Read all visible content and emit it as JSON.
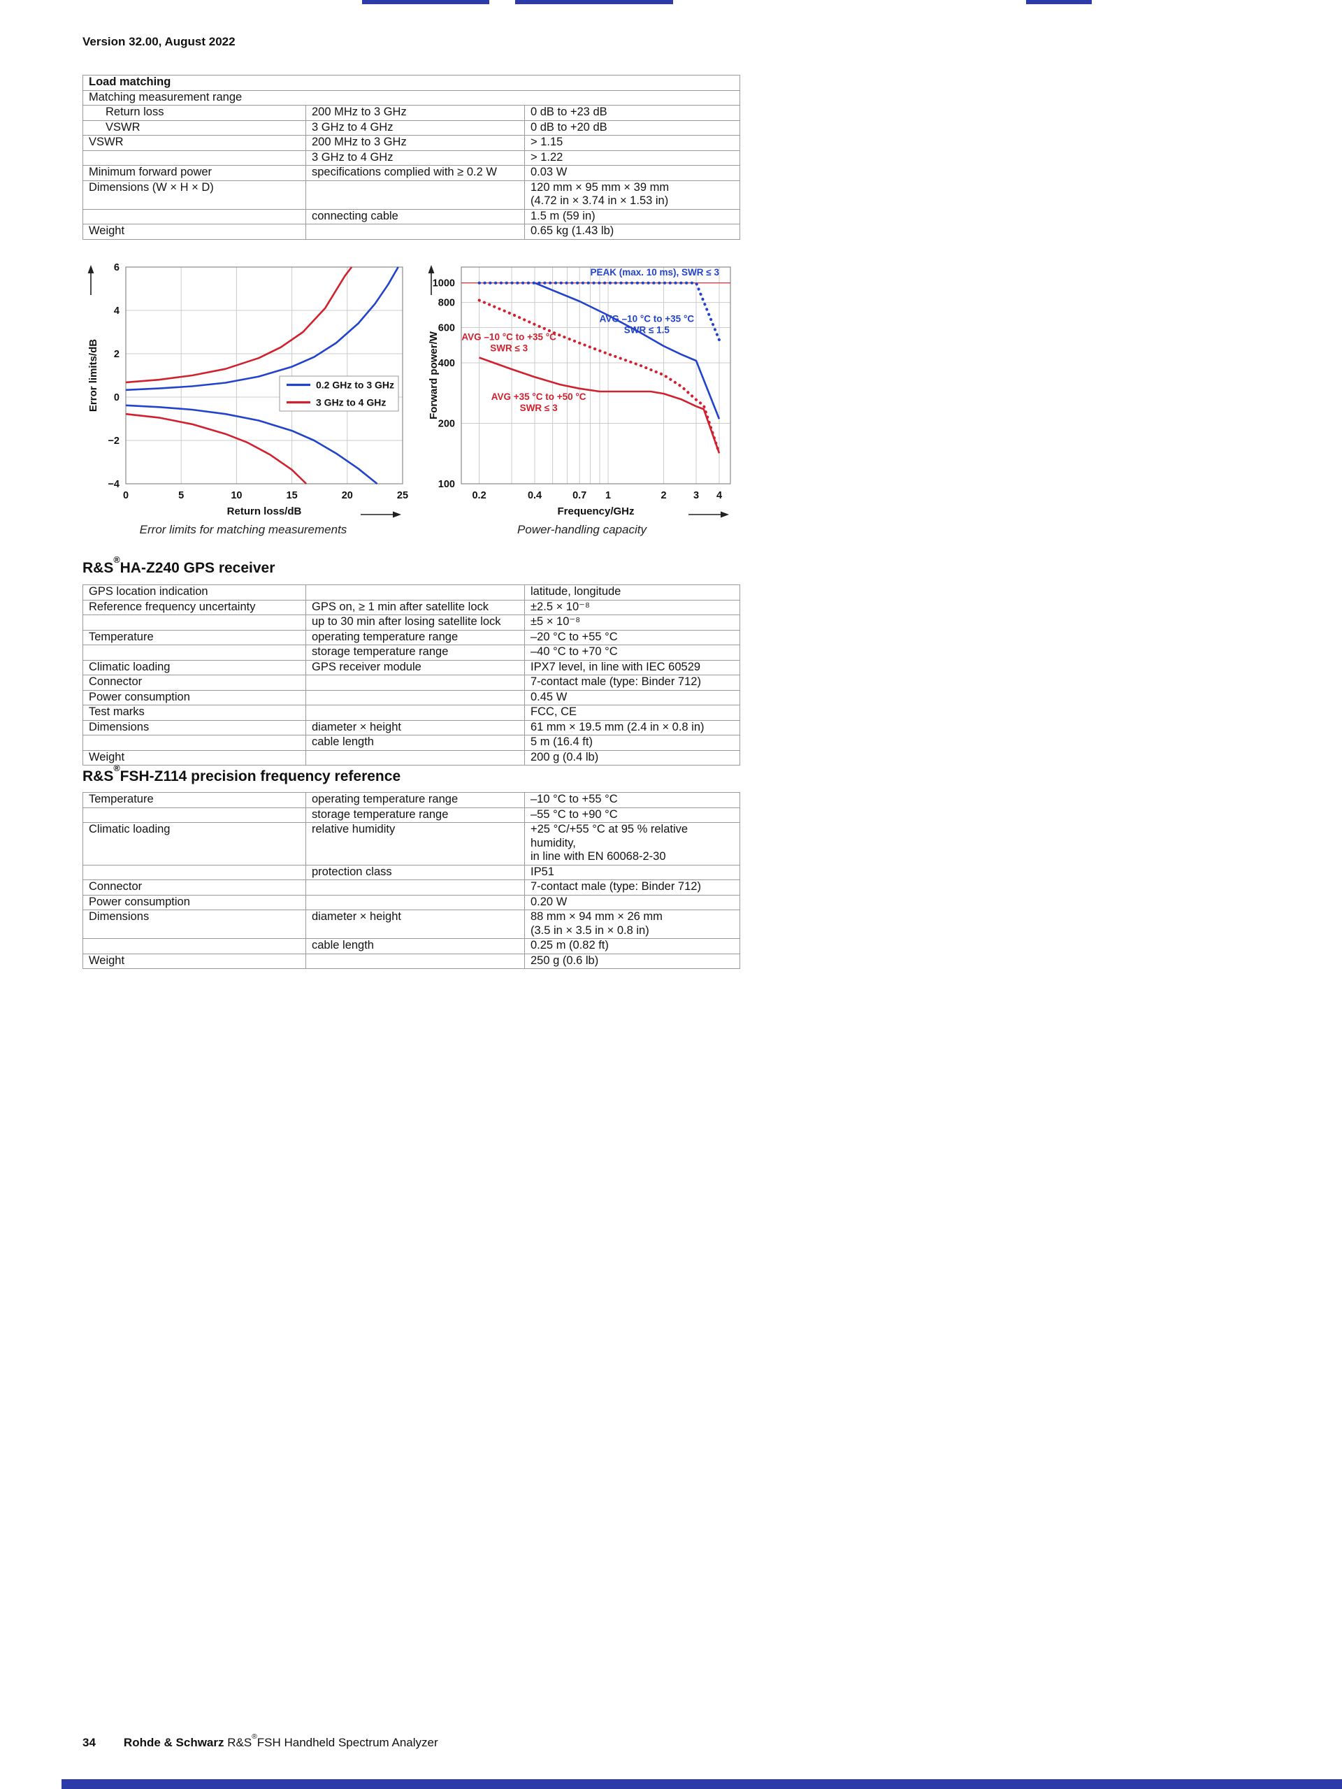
{
  "page": {
    "version_line": "Version 32.00, August 2022"
  },
  "headings": {
    "gps": {
      "prefix": "R&S",
      "reg": "®",
      "rest": "HA-Z240 GPS receiver"
    },
    "z114": {
      "prefix": "R&S",
      "reg": "®",
      "rest": "FSH-Z114 precision frequency reference"
    }
  },
  "footer": {
    "page_number": "34",
    "brand": "Rohde & Schwarz",
    "product_prefix": "R&S",
    "reg": "®",
    "product_rest": "FSH Handheld Spectrum Analyzer"
  },
  "colors": {
    "chart_blue": "#2243cc",
    "chart_red": "#d2212e",
    "bar_blue": "#2c3ba8",
    "grid_gray": "#cbcbcb",
    "frame_gray": "#8a8a8a",
    "table_border": "#9a9a9a"
  },
  "tables": {
    "load_matching": {
      "rows": [
        [
          {
            "t": "Load matching",
            "b": 1,
            "span": 3
          }
        ],
        [
          {
            "t": "Matching measurement range",
            "span": 3
          }
        ],
        [
          {
            "t": "Return loss",
            "ind": 1
          },
          {
            "t": "200 MHz to 3 GHz"
          },
          {
            "t": "0 dB to +23 dB"
          }
        ],
        [
          {
            "t": "VSWR",
            "ind": 1
          },
          {
            "t": "3 GHz to 4 GHz"
          },
          {
            "t": "0 dB to +20 dB"
          }
        ],
        [
          {
            "t": "VSWR"
          },
          {
            "t": "200 MHz to 3 GHz"
          },
          {
            "t": "> 1.15"
          }
        ],
        [
          {
            "t": ""
          },
          {
            "t": "3 GHz to 4 GHz"
          },
          {
            "t": "> 1.22"
          }
        ],
        [
          {
            "t": "Minimum forward power"
          },
          {
            "t": "specifications complied with ≥ 0.2 W"
          },
          {
            "t": "0.03 W"
          }
        ],
        [
          {
            "t": "Dimensions (W × H × D)"
          },
          {
            "t": ""
          },
          {
            "lines": [
              "120 mm × 95 mm × 39 mm",
              "(4.72 in × 3.74 in × 1.53 in)"
            ]
          }
        ],
        [
          {
            "t": ""
          },
          {
            "t": "connecting cable"
          },
          {
            "t": "1.5 m (59 in)"
          }
        ],
        [
          {
            "t": "Weight"
          },
          {
            "t": ""
          },
          {
            "t": "0.65 kg (1.43 lb)"
          }
        ]
      ]
    },
    "gps": {
      "rows": [
        [
          {
            "t": "GPS location indication"
          },
          {
            "t": ""
          },
          {
            "t": "latitude, longitude"
          }
        ],
        [
          {
            "t": "Reference frequency uncertainty"
          },
          {
            "t": "GPS on, ≥ 1 min after satellite lock"
          },
          {
            "t": "±2.5 × 10⁻⁸"
          }
        ],
        [
          {
            "t": ""
          },
          {
            "t": "up to 30 min after losing satellite lock"
          },
          {
            "t": "±5 × 10⁻⁸"
          }
        ],
        [
          {
            "t": "Temperature"
          },
          {
            "t": "operating temperature range"
          },
          {
            "t": "–20 °C to +55 °C"
          }
        ],
        [
          {
            "t": ""
          },
          {
            "t": "storage temperature range"
          },
          {
            "t": "–40 °C to +70 °C"
          }
        ],
        [
          {
            "t": "Climatic loading"
          },
          {
            "t": "GPS receiver module"
          },
          {
            "t": "IPX7 level, in line with IEC 60529"
          }
        ],
        [
          {
            "t": "Connector"
          },
          {
            "t": ""
          },
          {
            "t": "7-contact male (type: Binder 712)"
          }
        ],
        [
          {
            "t": "Power consumption"
          },
          {
            "t": ""
          },
          {
            "t": "0.45 W"
          }
        ],
        [
          {
            "t": "Test marks"
          },
          {
            "t": ""
          },
          {
            "t": "FCC, CE"
          }
        ],
        [
          {
            "t": "Dimensions"
          },
          {
            "t": "diameter × height"
          },
          {
            "t": "61 mm × 19.5 mm (2.4 in × 0.8 in)"
          }
        ],
        [
          {
            "t": ""
          },
          {
            "t": "cable length"
          },
          {
            "t": "5 m (16.4 ft)"
          }
        ],
        [
          {
            "t": "Weight"
          },
          {
            "t": ""
          },
          {
            "t": "200 g (0.4 lb)"
          }
        ]
      ]
    },
    "z114": {
      "rows": [
        [
          {
            "t": "Temperature"
          },
          {
            "t": "operating temperature range"
          },
          {
            "t": "–10 °C to +55 °C"
          }
        ],
        [
          {
            "t": ""
          },
          {
            "t": "storage temperature range"
          },
          {
            "t": "–55 °C to +90 °C"
          }
        ],
        [
          {
            "t": "Climatic loading"
          },
          {
            "t": "relative humidity"
          },
          {
            "lines": [
              "+25 °C/+55 °C at 95 % relative humidity,",
              "in line with EN 60068-2-30"
            ]
          }
        ],
        [
          {
            "t": ""
          },
          {
            "t": "protection class"
          },
          {
            "t": "IP51"
          }
        ],
        [
          {
            "t": "Connector"
          },
          {
            "t": ""
          },
          {
            "t": "7-contact male (type: Binder 712)"
          }
        ],
        [
          {
            "t": "Power consumption"
          },
          {
            "t": ""
          },
          {
            "t": "0.20 W"
          }
        ],
        [
          {
            "t": "Dimensions"
          },
          {
            "t": "diameter × height"
          },
          {
            "lines": [
              "88 mm × 94 mm × 26 mm",
              "(3.5 in × 3.5 in × 0.8 in)"
            ]
          }
        ],
        [
          {
            "t": ""
          },
          {
            "t": "cable length"
          },
          {
            "t": "0.25 m (0.82 ft)"
          }
        ],
        [
          {
            "t": "Weight"
          },
          {
            "t": ""
          },
          {
            "t": "250 g (0.6 lb)"
          }
        ]
      ]
    }
  },
  "chart_data": [
    {
      "type": "line",
      "title": "Error limits for matching measurements",
      "xlabel": "Return loss/dB",
      "ylabel": "Error limits/dB",
      "xlim": [
        0,
        25
      ],
      "ylim": [
        -4,
        6
      ],
      "xticks": [
        0,
        5,
        10,
        15,
        20,
        25
      ],
      "xtick_labels": [
        "0",
        "5",
        "10",
        "15",
        "20",
        "25"
      ],
      "yticks": [
        -4,
        -2,
        0,
        2,
        4,
        6
      ],
      "ytick_labels": [
        "−4",
        "−2",
        "0",
        "2",
        "4",
        "6"
      ],
      "grid": true,
      "legend": [
        {
          "label": "0.2 GHz to 3 GHz",
          "color": "#2243cc"
        },
        {
          "label": "3 GHz to 4 GHz",
          "color": "#d2212e"
        }
      ],
      "series": [
        {
          "name": "0.2 GHz to 3 GHz upper error limit",
          "color": "#2243cc",
          "style": "solid",
          "points": [
            [
              0,
              0.33
            ],
            [
              3,
              0.4
            ],
            [
              6,
              0.5
            ],
            [
              9,
              0.66
            ],
            [
              12,
              0.95
            ],
            [
              15,
              1.4
            ],
            [
              17,
              1.85
            ],
            [
              19,
              2.5
            ],
            [
              21,
              3.4
            ],
            [
              22.5,
              4.3
            ],
            [
              23.7,
              5.2
            ],
            [
              24.6,
              6
            ]
          ]
        },
        {
          "name": "0.2 GHz to 3 GHz lower error limit",
          "color": "#2243cc",
          "style": "solid",
          "points": [
            [
              0,
              -0.38
            ],
            [
              3,
              -0.46
            ],
            [
              6,
              -0.58
            ],
            [
              9,
              -0.78
            ],
            [
              12,
              -1.08
            ],
            [
              15,
              -1.55
            ],
            [
              17,
              -2.0
            ],
            [
              19,
              -2.6
            ],
            [
              21,
              -3.3
            ],
            [
              22.7,
              -4
            ]
          ]
        },
        {
          "name": "3 GHz to 4 GHz upper error limit",
          "color": "#d2212e",
          "style": "solid",
          "points": [
            [
              0,
              0.68
            ],
            [
              3,
              0.8
            ],
            [
              6,
              1.0
            ],
            [
              9,
              1.3
            ],
            [
              12,
              1.8
            ],
            [
              14,
              2.3
            ],
            [
              16,
              3.0
            ],
            [
              18,
              4.1
            ],
            [
              19.8,
              5.6
            ],
            [
              20.4,
              6
            ]
          ]
        },
        {
          "name": "3 GHz to 4 GHz lower error limit",
          "color": "#d2212e",
          "style": "solid",
          "points": [
            [
              0,
              -0.78
            ],
            [
              3,
              -0.95
            ],
            [
              6,
              -1.25
            ],
            [
              9,
              -1.7
            ],
            [
              11,
              -2.1
            ],
            [
              13,
              -2.65
            ],
            [
              15,
              -3.35
            ],
            [
              16.3,
              -4
            ]
          ]
        }
      ]
    },
    {
      "type": "line",
      "title": "Power-handling capacity",
      "xlabel": "Frequency/GHz",
      "ylabel": "Forward power/W",
      "xscale": "log",
      "yscale": "log",
      "xlim": [
        0.16,
        4.6
      ],
      "ylim": [
        100,
        1200
      ],
      "xticks": [
        0.2,
        0.4,
        0.7,
        1,
        2,
        3,
        4
      ],
      "xtick_labels": [
        "0.2",
        "0.4",
        "0.7",
        "1",
        "2",
        "3",
        "4"
      ],
      "yticks": [
        100,
        200,
        400,
        600,
        800,
        1000
      ],
      "ytick_labels": [
        "100",
        "200",
        "400",
        "600",
        "800",
        "1000"
      ],
      "minor_xticks": [
        0.3,
        0.5,
        0.6,
        0.8,
        0.9
      ],
      "grid": true,
      "series": [
        {
          "name": "PEAK limit reference line",
          "color": "#d2212e",
          "style": "thin",
          "points": [
            [
              0.16,
              1000
            ],
            [
              4.6,
              1000
            ]
          ]
        },
        {
          "name": "PEAK (max. 10 ms), SWR ≤ 3",
          "color": "#2243cc",
          "style": "dotted",
          "points": [
            [
              0.2,
              1000
            ],
            [
              3,
              1000
            ],
            [
              4,
              520
            ]
          ]
        },
        {
          "name": "AVG –10 °C to +35 °C, SWR ≤ 1.5",
          "color": "#2243cc",
          "style": "solid",
          "points": [
            [
              0.4,
              1000
            ],
            [
              0.7,
              810
            ],
            [
              1,
              690
            ],
            [
              1.5,
              565
            ],
            [
              2,
              485
            ],
            [
              2.5,
              440
            ],
            [
              3,
              410
            ],
            [
              4,
              210
            ]
          ]
        },
        {
          "name": "AVG –10 °C to +35 °C, SWR ≤ 3",
          "color": "#d2212e",
          "style": "dotted",
          "points": [
            [
              0.2,
              820
            ],
            [
              0.3,
              700
            ],
            [
              0.4,
              622
            ],
            [
              0.55,
              548
            ],
            [
              0.7,
              502
            ],
            [
              1,
              443
            ],
            [
              1.5,
              388
            ],
            [
              2,
              348
            ],
            [
              2.5,
              305
            ],
            [
              3,
              262
            ],
            [
              3.3,
              245
            ],
            [
              4,
              142
            ]
          ]
        },
        {
          "name": "AVG +35 °C to +50 °C, SWR ≤ 3",
          "color": "#d2212e",
          "style": "solid",
          "points": [
            [
              0.2,
              425
            ],
            [
              0.3,
              372
            ],
            [
              0.4,
              340
            ],
            [
              0.55,
              312
            ],
            [
              0.7,
              298
            ],
            [
              0.9,
              288
            ],
            [
              1.7,
              288
            ],
            [
              2,
              281
            ],
            [
              2.5,
              263
            ],
            [
              3,
              243
            ],
            [
              3.3,
              235
            ],
            [
              4,
              142
            ]
          ]
        }
      ],
      "annotations": [
        {
          "x": 4.0,
          "y": 1090,
          "anchor": "end",
          "color": "#2243cc",
          "lines": [
            "PEAK (max. 10 ms), SWR ≤ 3"
          ]
        },
        {
          "x": 1.62,
          "y": 640,
          "anchor": "middle",
          "color": "#2243cc",
          "lines": [
            "AVG –10 °C to +35 °C",
            "SWR ≤ 1.5"
          ]
        },
        {
          "x": 0.29,
          "y": 520,
          "anchor": "middle",
          "color": "#d2212e",
          "lines": [
            "AVG –10 °C to +35 °C",
            "SWR ≤ 3"
          ]
        },
        {
          "x": 0.42,
          "y": 262,
          "anchor": "middle",
          "color": "#d2212e",
          "lines": [
            "AVG +35 °C to +50 °C",
            "SWR ≤ 3"
          ]
        }
      ]
    }
  ]
}
